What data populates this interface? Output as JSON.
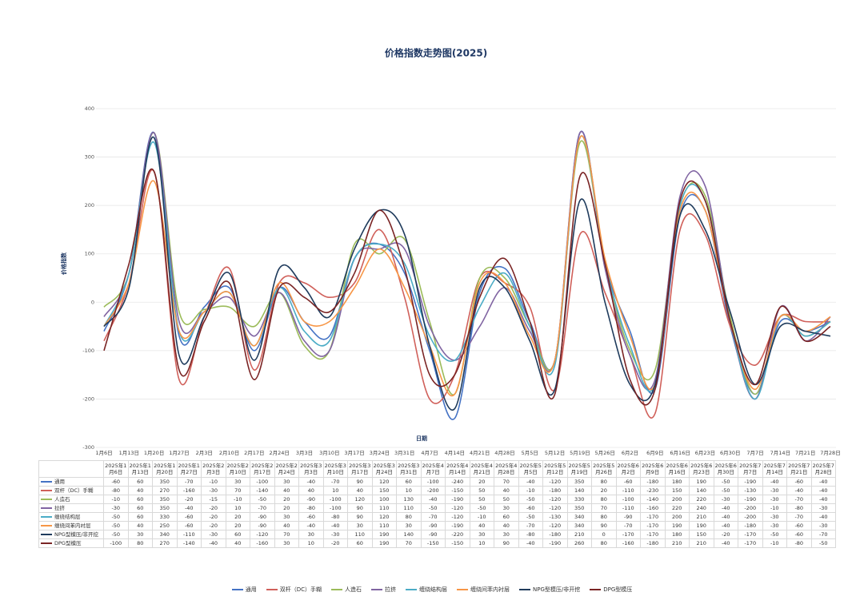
{
  "chart_data": {
    "type": "line",
    "title": "价格指数走势图(2025)",
    "x_label": "日期",
    "y_label": "价格指数",
    "categories": [
      "1月6日",
      "1月13日",
      "1月20日",
      "1月27日",
      "2月3日",
      "2月10日",
      "2月17日",
      "2月24日",
      "3月3日",
      "3月10日",
      "3月17日",
      "3月24日",
      "3月31日",
      "4月7日",
      "4月14日",
      "4月21日",
      "4月28日",
      "5月5日",
      "5月12日",
      "5月19日",
      "5月26日",
      "6月2日",
      "6月9日",
      "6月16日",
      "6月23日",
      "6月30日",
      "7月7日",
      "7月14日",
      "7月21日",
      "7月28日"
    ],
    "table_headers": [
      "2025年1月6日",
      "2025年1月13日",
      "2025年1月20日",
      "2025年1月27日",
      "2025年2月3日",
      "2025年2月10日",
      "2025年2月17日",
      "2025年2月24日",
      "2025年3月3日",
      "2025年3月10日",
      "2025年3月17日",
      "2025年3月24日",
      "2025年3月31日",
      "2025年4月7日",
      "2025年4月14日",
      "2025年4月21日",
      "2025年4月28日",
      "2025年5月5日",
      "2025年5月12日",
      "2025年5月19日",
      "2025年5月26日",
      "2025年6月2日",
      "2025年6月9日",
      "2025年6月16日",
      "2025年6月23日",
      "2025年6月30日",
      "2025年7月7日",
      "2025年7月14日",
      "2025年7月21日",
      "2025年7月28日"
    ],
    "ylim": [
      -300,
      400
    ],
    "yticks": [
      -300,
      -200,
      -100,
      0,
      100,
      200,
      300,
      400
    ],
    "grid": true,
    "legend": "bottom",
    "series": [
      {
        "name": "通用",
        "color": "#4472c4",
        "values": [
          -60,
          60,
          350,
          -70,
          -10,
          30,
          -100,
          30,
          -40,
          -70,
          90,
          120,
          60,
          -100,
          -240,
          20,
          70,
          -40,
          -120,
          350,
          80,
          -60,
          -180,
          180,
          190,
          -50,
          -190,
          -40,
          -60,
          -40
        ]
      },
      {
        "name": "双杆（DC）手糊",
        "color": "#d0605a",
        "values": [
          -80,
          40,
          270,
          -160,
          -30,
          70,
          -140,
          40,
          40,
          10,
          40,
          150,
          10,
          -200,
          -150,
          50,
          40,
          -10,
          -180,
          140,
          20,
          -110,
          -230,
          150,
          140,
          -50,
          -130,
          -30,
          -40,
          -40
        ]
      },
      {
        "name": "人造石",
        "color": "#9bbb59",
        "values": [
          -10,
          60,
          350,
          -20,
          -15,
          -10,
          -50,
          20,
          -90,
          -100,
          120,
          100,
          130,
          -40,
          -190,
          50,
          50,
          -50,
          -120,
          330,
          80,
          -100,
          -140,
          200,
          220,
          -30,
          -190,
          -30,
          -70,
          -40
        ]
      },
      {
        "name": "拉挤",
        "color": "#8064a2",
        "values": [
          -30,
          60,
          350,
          -40,
          -20,
          10,
          -70,
          20,
          -80,
          -100,
          90,
          110,
          110,
          -50,
          -120,
          -50,
          30,
          -60,
          -120,
          350,
          70,
          -110,
          -160,
          220,
          240,
          -40,
          -200,
          -10,
          -80,
          -30
        ]
      },
      {
        "name": "缠绕结构层",
        "color": "#4bacc6",
        "values": [
          -50,
          60,
          330,
          -60,
          -20,
          20,
          -90,
          30,
          -60,
          -80,
          90,
          120,
          80,
          -70,
          -120,
          -10,
          60,
          -50,
          -130,
          340,
          80,
          -90,
          -170,
          200,
          210,
          -40,
          -200,
          -30,
          -70,
          -40
        ]
      },
      {
        "name": "缠绕间苯内衬层",
        "color": "#f79646",
        "values": [
          -50,
          40,
          250,
          -60,
          -20,
          20,
          -90,
          40,
          -40,
          -40,
          30,
          110,
          30,
          -90,
          -190,
          40,
          40,
          -70,
          -120,
          340,
          90,
          -70,
          -170,
          190,
          190,
          -40,
          -180,
          -30,
          -60,
          -30
        ]
      },
      {
        "name": "NPG型模压/非开挖",
        "color": "#1f3b5c",
        "values": [
          -50,
          30,
          340,
          -110,
          -30,
          60,
          -120,
          70,
          30,
          -30,
          110,
          190,
          140,
          -90,
          -220,
          30,
          30,
          -80,
          -180,
          210,
          0,
          -170,
          -170,
          180,
          150,
          -20,
          -170,
          -50,
          -60,
          -70
        ]
      },
      {
        "name": "DPG型模压",
        "color": "#7a2424",
        "values": [
          -100,
          80,
          270,
          -140,
          -40,
          40,
          -160,
          30,
          10,
          -20,
          60,
          190,
          70,
          -150,
          -150,
          10,
          90,
          -40,
          -190,
          260,
          80,
          -160,
          -180,
          210,
          210,
          -40,
          -170,
          -10,
          -80,
          -50
        ]
      }
    ]
  }
}
